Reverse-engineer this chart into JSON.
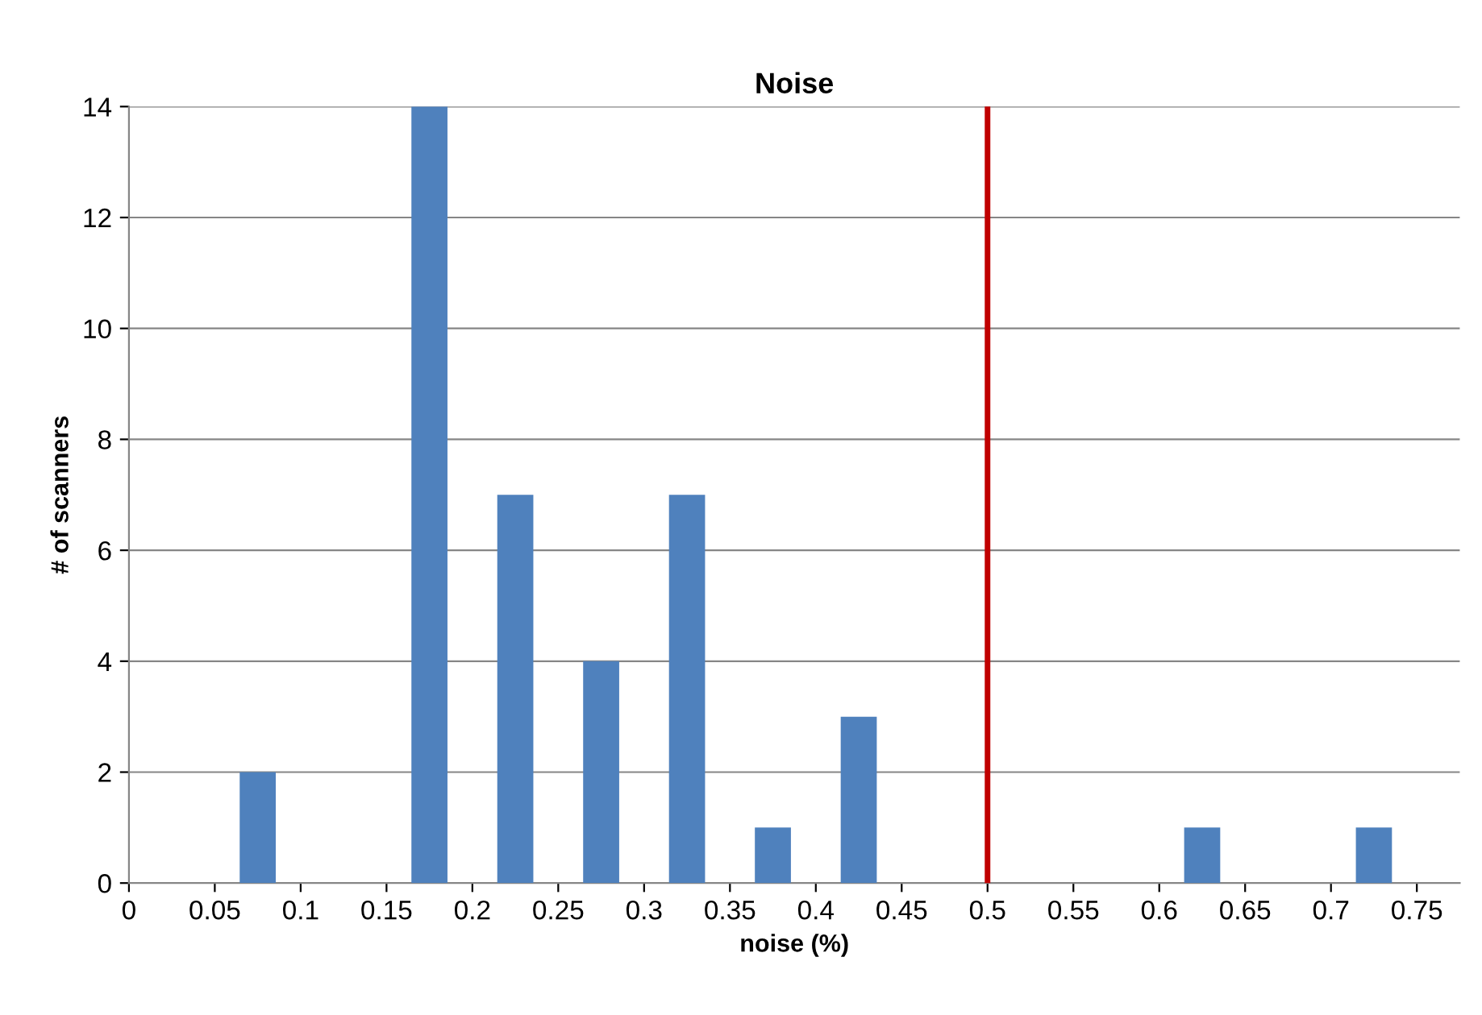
{
  "chart_data": {
    "type": "histogram",
    "title": "Noise",
    "xlabel": "noise (%)",
    "ylabel": "# of scanners",
    "bins": [
      0,
      0.05,
      0.1,
      0.15,
      0.2,
      0.25,
      0.3,
      0.35,
      0.4,
      0.45,
      0.5,
      0.55,
      0.6,
      0.65,
      0.7,
      0.75
    ],
    "values": [
      0,
      2,
      0,
      14,
      7,
      4,
      7,
      1,
      3,
      0,
      0,
      0,
      1,
      0,
      1
    ],
    "color": "#4f81bd",
    "xlim": [
      0,
      0.775
    ],
    "xticks": [
      0,
      0.05,
      0.1,
      0.15,
      0.2,
      0.25,
      0.3,
      0.35,
      0.4,
      0.45,
      0.5,
      0.55,
      0.6,
      0.65,
      0.7,
      0.75
    ],
    "ylim": [
      0,
      14
    ],
    "yticks": [
      0,
      2,
      4,
      6,
      8,
      10,
      12,
      14
    ],
    "ref_lines": [
      {
        "axis": "x",
        "value": 0.5,
        "color": "#c00000"
      }
    ],
    "grid": "y",
    "legend": false
  }
}
